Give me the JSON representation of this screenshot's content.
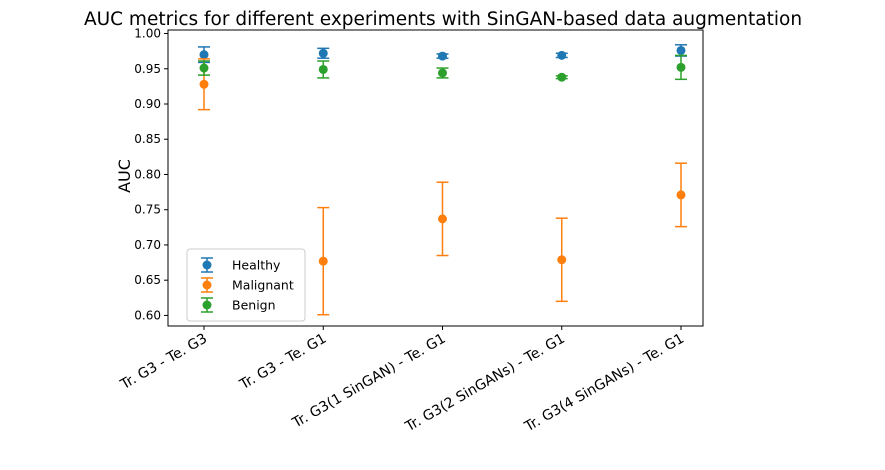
{
  "chart_data": {
    "type": "scatter",
    "title": "AUC metrics for different experiments with SinGAN-based data augmentation",
    "xlabel": "",
    "ylabel": "AUC",
    "categories": [
      "Tr. G3 - Te. G3",
      "Tr. G3 - Te. G1",
      "Tr. G3(1 SinGAN) - Te. G1",
      "Tr. G3(2 SinGANs) - Te. G1",
      "Tr. G3(4 SinGANs) - Te. G1"
    ],
    "ylim": [
      0.585,
      1.005
    ],
    "yticks": [
      0.6,
      0.65,
      0.7,
      0.75,
      0.8,
      0.85,
      0.9,
      0.95,
      1.0
    ],
    "ytick_labels": [
      "0.60",
      "0.65",
      "0.70",
      "0.75",
      "0.80",
      "0.85",
      "0.90",
      "0.95",
      "1.00"
    ],
    "legend_position": "lower-left",
    "series": [
      {
        "name": "Healthy",
        "color": "#1f77b4",
        "values": [
          0.97,
          0.972,
          0.968,
          0.969,
          0.976
        ],
        "errors": [
          0.011,
          0.007,
          0.003,
          0.003,
          0.008
        ]
      },
      {
        "name": "Malignant",
        "color": "#ff7f0e",
        "values": [
          0.928,
          0.677,
          0.737,
          0.679,
          0.771
        ],
        "errors": [
          0.036,
          0.076,
          0.052,
          0.059,
          0.045
        ]
      },
      {
        "name": "Benign",
        "color": "#2ca02c",
        "values": [
          0.951,
          0.949,
          0.944,
          0.938,
          0.952
        ],
        "errors": [
          0.01,
          0.012,
          0.007,
          0.002,
          0.017
        ]
      }
    ]
  }
}
